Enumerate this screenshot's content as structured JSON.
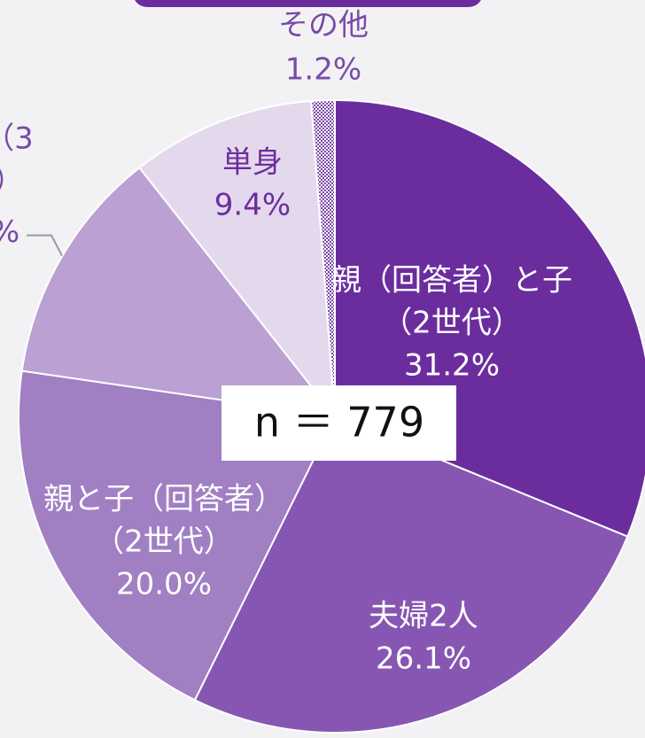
{
  "chart_data": {
    "type": "pie",
    "categories": [
      [
        "親（回答者）と子",
        "（2世代）"
      ],
      [
        "夫婦2人"
      ],
      [
        "親と子（回答者）",
        "（2世代）"
      ],
      [
        "（3",
        "）"
      ],
      [
        "単身"
      ],
      [
        "その他"
      ]
    ],
    "values": [
      31.2,
      26.1,
      20.0,
      12.1,
      9.4,
      1.2
    ],
    "value_labels": [
      "31.2%",
      "26.1%",
      "20.0%",
      "%",
      "9.4%",
      "1.2%"
    ],
    "colors": [
      "#6b2d9e",
      "#8756b3",
      "#a07fc3",
      "#bba0d3",
      "#e4d9ec",
      "#7b4aa8"
    ],
    "center_label": "n ＝ 779"
  }
}
